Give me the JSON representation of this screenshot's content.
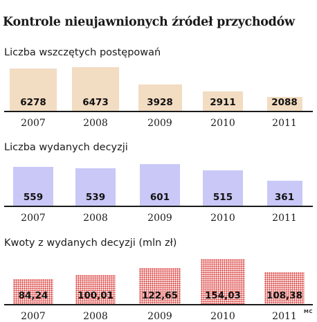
{
  "title": "Kontrole nieujawnionych źródeł przychodów",
  "credit": "MC",
  "colors": {
    "peach": "#f2dcc2",
    "lavender": "#c9c8f7",
    "dots": "#d7332f"
  },
  "chart_data": [
    {
      "type": "bar",
      "title": "Liczba wszczętych postępowań",
      "categories": [
        "2007",
        "2008",
        "2009",
        "2010",
        "2011"
      ],
      "values": [
        6278,
        6473,
        3928,
        2911,
        2088
      ],
      "value_labels": [
        "6278",
        "6473",
        "3928",
        "2911",
        "2088"
      ],
      "fill": "peach"
    },
    {
      "type": "bar",
      "title": "Liczba wydanych decyzji",
      "categories": [
        "2007",
        "2008",
        "2009",
        "2010",
        "2011"
      ],
      "values": [
        559,
        539,
        601,
        515,
        361
      ],
      "value_labels": [
        "559",
        "539",
        "601",
        "515",
        "361"
      ],
      "fill": "lavender"
    },
    {
      "type": "bar",
      "title": "Kwoty z wydanych decyzji (mln zł)",
      "categories": [
        "2007",
        "2008",
        "2009",
        "2010",
        "2011"
      ],
      "values": [
        84.24,
        100.01,
        122.65,
        154.03,
        108.38
      ],
      "value_labels": [
        "84,24",
        "100,01",
        "122,65",
        "154,03",
        "108,38"
      ],
      "fill": "dots"
    }
  ]
}
